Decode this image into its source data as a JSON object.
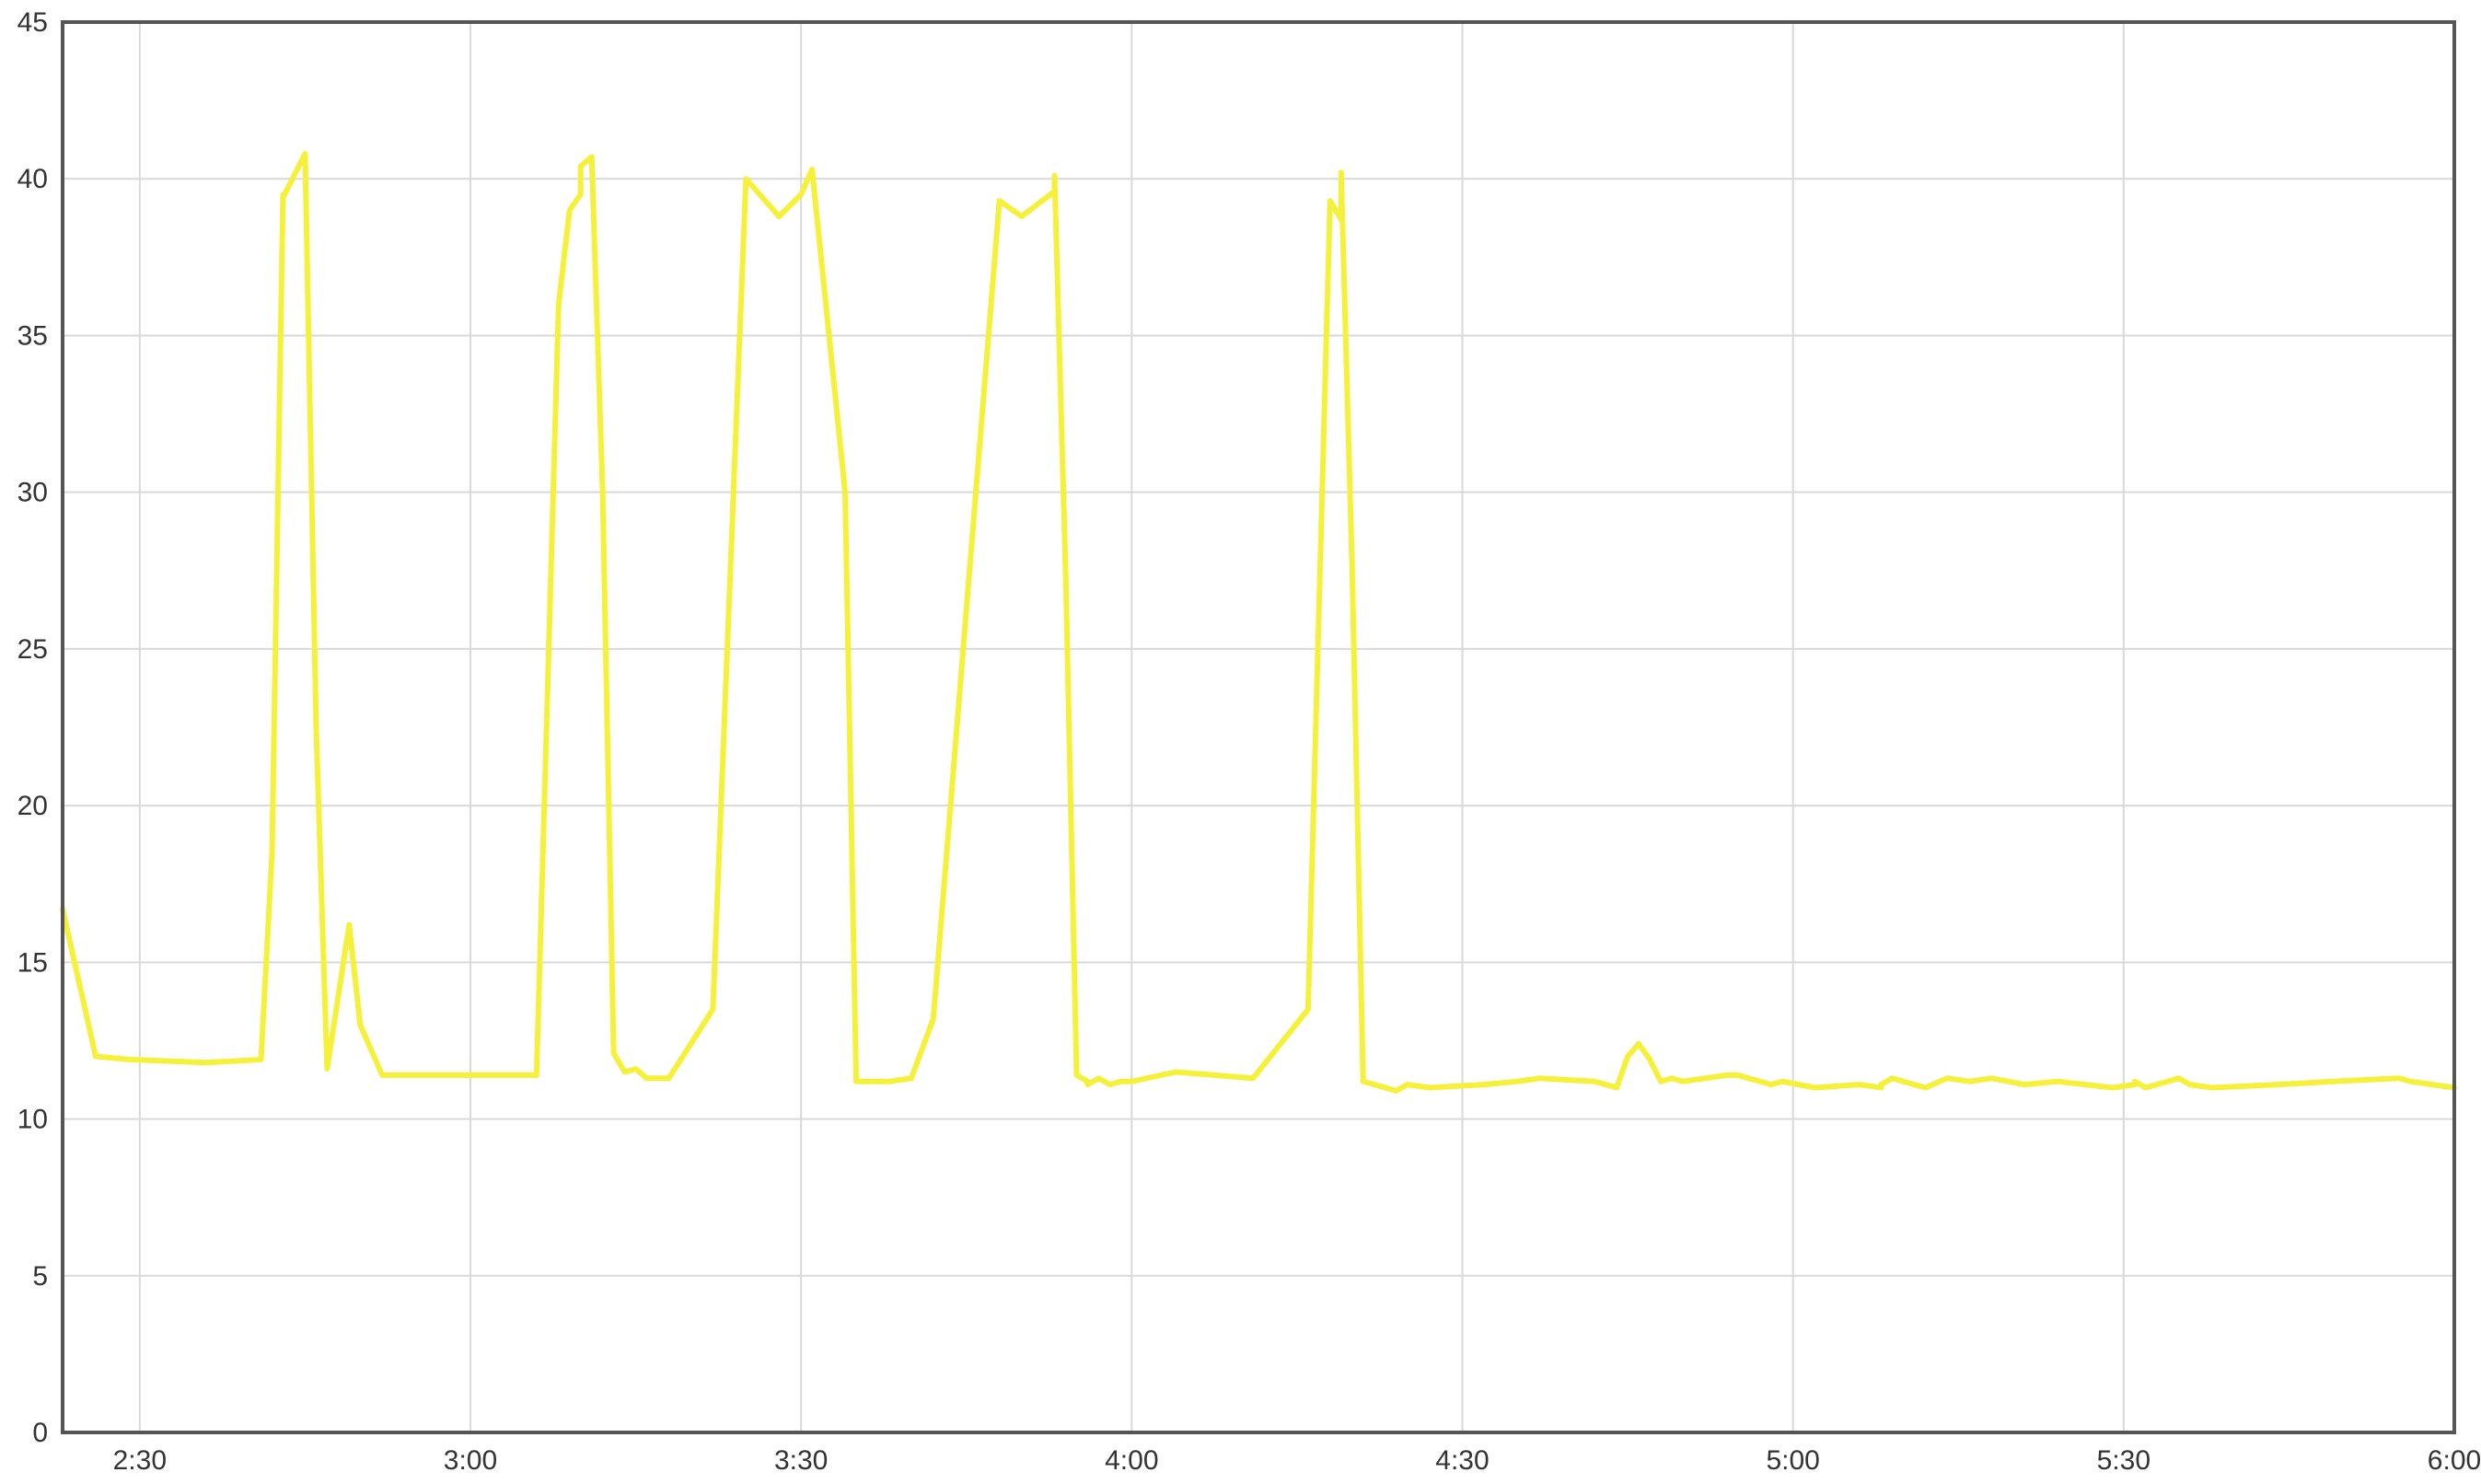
{
  "chart_data": {
    "type": "line",
    "title": "",
    "xlabel": "",
    "ylabel": "",
    "xlim": [
      "2:23",
      "6:00"
    ],
    "ylim": [
      0,
      45
    ],
    "grid": true,
    "legend": "none",
    "x_ticks": [
      "2:30",
      "3:00",
      "3:30",
      "4:00",
      "4:30",
      "5:00",
      "5:30",
      "6:00"
    ],
    "y_ticks": [
      0,
      5,
      10,
      15,
      20,
      25,
      30,
      35,
      40,
      45
    ],
    "colors": {
      "series": "#f5f03a",
      "grid": "#d9d9d9",
      "frame": "#555555",
      "background": "#ffffff"
    },
    "series": [
      {
        "x": [
          "2:23",
          "2:26",
          "2:29",
          "2:36",
          "2:41",
          "2:42",
          "2:43",
          "2:43",
          "2:44",
          "2:45",
          "2:46",
          "2:47",
          "2:49",
          "2:50",
          "2:52",
          "2:54",
          "2:57",
          "3:00",
          "3:06",
          "3:08",
          "3:09",
          "3:10",
          "3:10",
          "3:11",
          "3:12",
          "3:13",
          "3:14",
          "3:15",
          "3:16",
          "3:17",
          "3:18",
          "3:22",
          "3:25",
          "3:28",
          "3:30",
          "3:31",
          "3:34",
          "3:35",
          "3:35",
          "3:36",
          "3:37",
          "3:38",
          "3:40",
          "3:42",
          "3:48",
          "3:50",
          "3:53",
          "3:53",
          "3:54",
          "3:55",
          "3:56",
          "3:56",
          "3:57",
          "3:58",
          "3:59",
          "4:00",
          "4:04",
          "4:11",
          "4:16",
          "4:18",
          "4:19",
          "4:19",
          "4:20",
          "4:21",
          "4:22",
          "4:23",
          "4:23",
          "4:24",
          "4:25",
          "4:27",
          "4:32",
          "4:35",
          "4:37",
          "4:42",
          "4:43",
          "4:44",
          "4:45",
          "4:46",
          "4:47",
          "4:48",
          "4:49",
          "4:50",
          "4:52",
          "4:54",
          "4:55",
          "4:58",
          "4:59",
          "5:02",
          "5:06",
          "5:08",
          "5:08",
          "5:09",
          "5:10",
          "5:11",
          "5:12",
          "5:14",
          "5:16",
          "5:18",
          "5:21",
          "5:24",
          "5:29",
          "5:31",
          "5:31",
          "5:32",
          "5:33",
          "5:34",
          "5:35",
          "5:36",
          "5:38",
          "5:44",
          "5:49",
          "5:55",
          "5:56",
          "5:58",
          "6:00"
        ],
        "values": [
          16.7,
          12.0,
          11.9,
          11.8,
          11.9,
          18.5,
          39.5,
          39.4,
          40.1,
          40.8,
          22.5,
          11.6,
          16.2,
          13.0,
          11.4,
          11.4,
          11.4,
          11.4,
          11.4,
          36.0,
          39.0,
          39.5,
          40.4,
          40.7,
          30.0,
          12.1,
          11.5,
          11.6,
          11.3,
          11.3,
          11.3,
          13.5,
          40.0,
          38.8,
          39.5,
          40.3,
          30.0,
          11.3,
          11.2,
          11.2,
          11.2,
          11.2,
          11.3,
          13.2,
          39.3,
          38.8,
          39.6,
          40.1,
          27.5,
          11.4,
          11.2,
          11.1,
          11.3,
          11.1,
          11.2,
          11.2,
          11.5,
          11.3,
          13.5,
          39.3,
          38.7,
          40.2,
          27.5,
          11.2,
          11.1,
          11.0,
          11.0,
          10.9,
          11.1,
          11.0,
          11.1,
          11.2,
          11.3,
          11.2,
          11.1,
          11.0,
          12.0,
          12.4,
          11.9,
          11.2,
          11.3,
          11.2,
          11.3,
          11.4,
          11.4,
          11.1,
          11.2,
          11.0,
          11.1,
          11.0,
          11.1,
          11.3,
          11.2,
          11.1,
          11.0,
          11.3,
          11.2,
          11.3,
          11.1,
          11.2,
          11.0,
          11.1,
          11.2,
          11.0,
          11.1,
          11.2,
          11.3,
          11.1,
          11.0,
          11.1,
          11.2,
          11.3,
          11.2,
          11.1,
          11.0
        ]
      }
    ]
  }
}
